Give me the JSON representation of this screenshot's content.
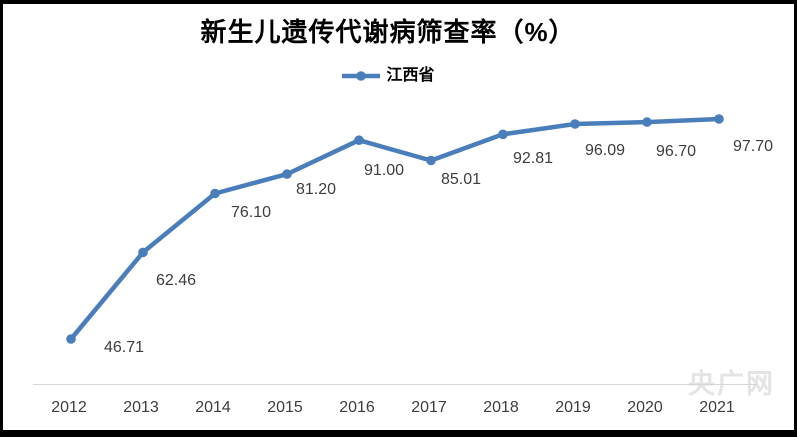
{
  "window": {
    "background": "#ffffff",
    "frame_color": "#000000"
  },
  "chart_data": {
    "type": "line",
    "title": "新生儿遗传代谢病筛查率（%）",
    "categories": [
      "2012",
      "2013",
      "2014",
      "2015",
      "2016",
      "2017",
      "2018",
      "2019",
      "2020",
      "2021"
    ],
    "series": [
      {
        "name": "江西省",
        "color": "#4a7ebb",
        "values": [
          46.71,
          62.46,
          76.1,
          81.2,
          91.0,
          85.01,
          92.81,
          96.09,
          96.7,
          97.7
        ]
      }
    ],
    "data_labels": [
      "46.71",
      "62.46",
      "76.10",
      "81.20",
      "91.00",
      "85.01",
      "92.81",
      "96.09",
      "96.70",
      "97.70"
    ],
    "xlabel": "",
    "ylabel": "",
    "y_scale": "log",
    "y_axis_visible": false,
    "grid": "off",
    "legend_position": "top",
    "marker": "circle",
    "data_label_color": "#3d3d3d",
    "tick_label_color": "#3d3d3d",
    "axis_line_color": "#d6d6d6"
  },
  "watermark": {
    "text": "央广网"
  }
}
